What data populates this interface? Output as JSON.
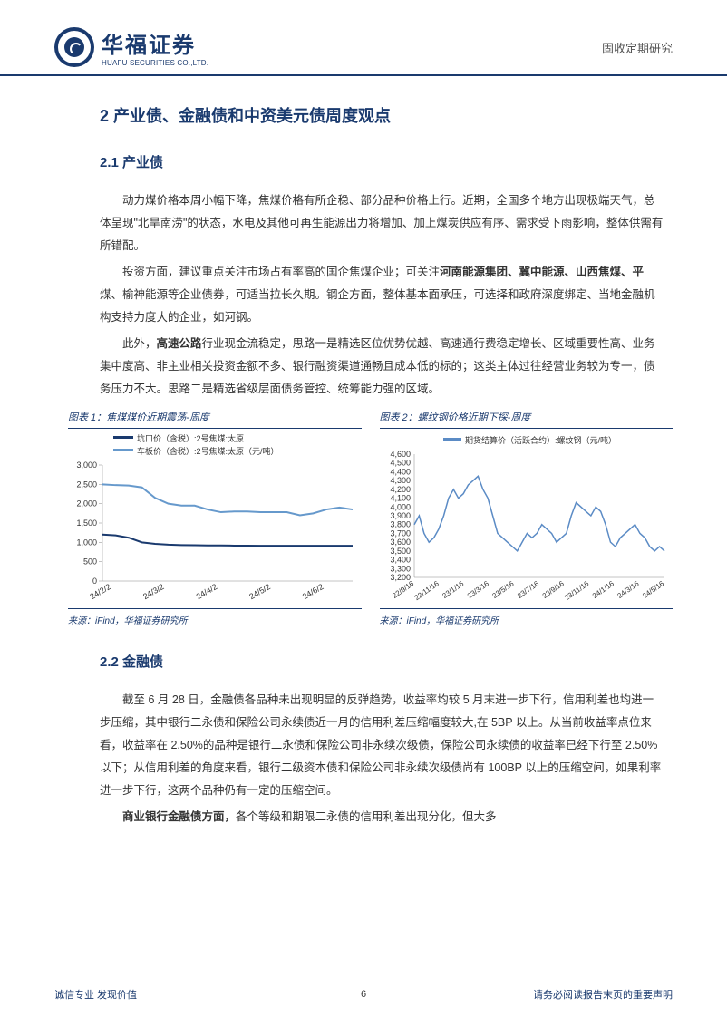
{
  "header": {
    "company_cn": "华福证券",
    "company_en": "HUAFU SECURITIES CO.,LTD.",
    "doc_type": "固收定期研究"
  },
  "section2": {
    "title": "2 产业债、金融债和中资美元债周度观点",
    "sub21": {
      "title": "2.1 产业债",
      "p1": "动力煤价格本周小幅下降，焦煤价格有所企稳、部分品种价格上行。近期，全国多个地方出现极端天气，总体呈现\"北旱南涝\"的状态，水电及其他可再生能源出力将增加、加上煤炭供应有序、需求受下雨影响，整体供需有所错配。",
      "p2_pre": "投资方面，建议重点关注市场占有率高的国企焦煤企业；可关注",
      "p2_bold": "河南能源集团、冀中能源、山西焦煤、平",
      "p2_post": "煤、榆神能源等企业债券，可适当拉长久期。钢企方面，整体基本面承压，可选择和政府深度绑定、当地金融机构支持力度大的企业，如河钢。",
      "p3_pre": "此外，",
      "p3_bold": "高速公路",
      "p3_post": "行业现金流稳定，思路一是精选区位优势优越、高速通行费稳定增长、区域重要性高、业务集中度高、非主业相关投资金额不多、银行融资渠道通畅且成本低的标的；这类主体过往经营业务较为专一，债务压力不大。思路二是精选省级层面债务管控、统筹能力强的区域。"
    },
    "sub22": {
      "title": "2.2 金融债",
      "p1": "截至 6 月 28 日，金融债各品种未出现明显的反弹趋势，收益率均较 5 月末进一步下行，信用利差也均进一步压缩，其中银行二永债和保险公司永续债近一月的信用利差压缩幅度较大,在 5BP 以上。从当前收益率点位来看，收益率在 2.50%的品种是银行二永债和保险公司非永续次级债，保险公司永续债的收益率已经下行至 2.50%以下；从信用利差的角度来看，银行二级资本债和保险公司非永续次级债尚有 100BP 以上的压缩空间，如果利率进一步下行，这两个品种仍有一定的压缩空间。",
      "p2_bold": "商业银行金融债方面，",
      "p2_post": "各个等级和期限二永债的信用利差出现分化，但大多"
    }
  },
  "chart1": {
    "title": "图表 1：焦煤煤价近期震荡-周度",
    "source": "来源：iFind，华福证券研究所",
    "legend1": "坑口价（含税）:2号焦煤:太原",
    "legend2": "车板价（含税）:2号焦煤:太原（元/吨）",
    "type": "line",
    "colors": {
      "s1": "#1a3a6e",
      "s2": "#6699cc",
      "axis": "#888888",
      "bg": "#ffffff"
    },
    "xlabels": [
      "24/2/2",
      "24/3/2",
      "24/4/2",
      "24/5/2",
      "24/6/2"
    ],
    "ylim": [
      0,
      3000
    ],
    "yticks": [
      0,
      500,
      1000,
      1500,
      2000,
      2500,
      3000
    ],
    "series1": [
      1200,
      1180,
      1120,
      1000,
      960,
      940,
      930,
      925,
      920,
      920,
      915,
      915,
      910,
      910,
      910,
      910,
      910,
      910,
      910,
      910
    ],
    "series2": [
      2500,
      2480,
      2470,
      2420,
      2150,
      2000,
      1950,
      1950,
      1850,
      1780,
      1800,
      1800,
      1780,
      1780,
      1780,
      1700,
      1750,
      1850,
      1900,
      1850
    ],
    "line_width": 2,
    "font_size": 9
  },
  "chart2": {
    "title": "图表 2：螺纹钢价格近期下探-周度",
    "source": "来源：iFind，华福证券研究所",
    "legend": "期货结算价（活跃合约）:螺纹钢（元/吨）",
    "type": "line",
    "colors": {
      "s1": "#5b8bc5",
      "axis": "#888888",
      "bg": "#ffffff"
    },
    "xlabels": [
      "22/9/16",
      "22/11/16",
      "23/1/16",
      "23/3/16",
      "23/5/16",
      "23/7/16",
      "23/9/16",
      "23/11/16",
      "24/1/16",
      "24/3/16",
      "24/5/16"
    ],
    "ylim": [
      3200,
      4600
    ],
    "yticks": [
      3200,
      3300,
      3400,
      3500,
      3600,
      3700,
      3800,
      3900,
      4000,
      4100,
      4200,
      4300,
      4400,
      4500,
      4600
    ],
    "series": [
      3800,
      3900,
      3700,
      3600,
      3650,
      3750,
      3900,
      4100,
      4200,
      4100,
      4150,
      4250,
      4300,
      4350,
      4200,
      4100,
      3900,
      3700,
      3650,
      3600,
      3550,
      3500,
      3600,
      3700,
      3650,
      3700,
      3800,
      3750,
      3700,
      3600,
      3650,
      3700,
      3900,
      4050,
      4000,
      3950,
      3900,
      4000,
      3950,
      3800,
      3600,
      3550,
      3650,
      3700,
      3750,
      3800,
      3700,
      3650,
      3550,
      3500,
      3550,
      3500
    ],
    "line_width": 1.5,
    "font_size": 9
  },
  "footer": {
    "left": "诚信专业   发现价值",
    "page": "6",
    "right": "请务必阅读报告末页的重要声明"
  }
}
